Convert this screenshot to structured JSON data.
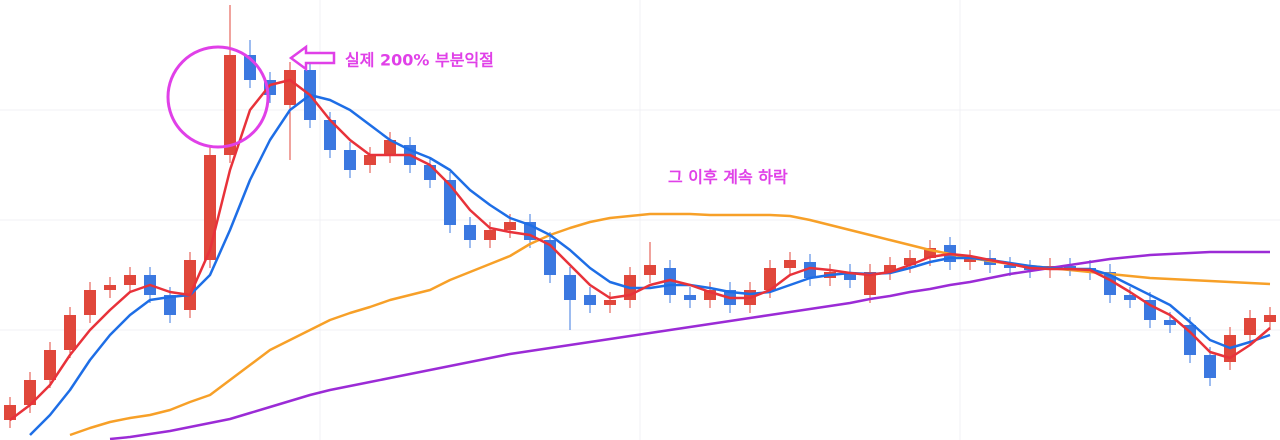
{
  "chart_data": {
    "type": "candlestick",
    "ylim": [
      0,
      440
    ],
    "up_color": "#e0473b",
    "down_color": "#3b78e0",
    "open": [
      20,
      35,
      60,
      90,
      125,
      150,
      155,
      165,
      145,
      130,
      180,
      285,
      385,
      360,
      335,
      370,
      320,
      290,
      275,
      285,
      295,
      275,
      260,
      215,
      200,
      210,
      218,
      200,
      165,
      145,
      135,
      140,
      165,
      172,
      145,
      140,
      150,
      135,
      150,
      172,
      178,
      162,
      168,
      145,
      168,
      175,
      182,
      195,
      178,
      182,
      175,
      172,
      170,
      174,
      172,
      168,
      145,
      140,
      120,
      115,
      85,
      78,
      105,
      118
    ],
    "high": [
      43,
      68,
      98,
      133,
      158,
      163,
      173,
      173,
      153,
      188,
      293,
      435,
      400,
      368,
      378,
      378,
      328,
      298,
      293,
      308,
      303,
      283,
      268,
      223,
      218,
      226,
      226,
      208,
      173,
      153,
      148,
      173,
      198,
      180,
      153,
      158,
      158,
      158,
      180,
      188,
      186,
      176,
      176,
      176,
      183,
      190,
      200,
      203,
      190,
      190,
      183,
      180,
      182,
      182,
      180,
      176,
      153,
      148,
      128,
      123,
      93,
      113,
      130,
      133
    ],
    "low": [
      12,
      27,
      52,
      82,
      117,
      142,
      147,
      137,
      117,
      122,
      172,
      277,
      352,
      337,
      280,
      312,
      282,
      262,
      267,
      277,
      267,
      252,
      207,
      192,
      192,
      202,
      192,
      157,
      110,
      127,
      127,
      132,
      157,
      137,
      132,
      132,
      127,
      127,
      142,
      164,
      154,
      154,
      152,
      137,
      160,
      167,
      174,
      170,
      170,
      167,
      164,
      162,
      162,
      164,
      160,
      137,
      132,
      112,
      107,
      77,
      54,
      70,
      97,
      110
    ],
    "close": [
      35,
      60,
      90,
      125,
      150,
      155,
      165,
      145,
      125,
      180,
      285,
      385,
      360,
      345,
      370,
      320,
      290,
      270,
      285,
      300,
      275,
      260,
      215,
      200,
      210,
      218,
      200,
      165,
      140,
      135,
      140,
      165,
      175,
      145,
      140,
      150,
      135,
      150,
      172,
      180,
      162,
      168,
      160,
      168,
      175,
      182,
      192,
      178,
      182,
      175,
      172,
      170,
      174,
      172,
      168,
      145,
      140,
      120,
      115,
      85,
      62,
      105,
      122,
      125
    ],
    "series": [
      {
        "color": "#f7a028",
        "values": [
          null,
          null,
          null,
          5,
          12,
          18,
          22,
          25,
          30,
          38,
          45,
          60,
          75,
          90,
          100,
          110,
          120,
          127,
          133,
          140,
          145,
          150,
          160,
          168,
          176,
          184,
          196,
          205,
          212,
          218,
          222,
          224,
          226,
          226,
          226,
          225,
          225,
          225,
          225,
          224,
          220,
          215,
          210,
          205,
          200,
          195,
          190,
          186,
          182,
          179,
          176,
          174,
          172,
          170,
          168,
          166,
          164,
          162,
          161,
          160,
          159,
          158,
          157,
          156
        ]
      },
      {
        "color": "#9b2bd6",
        "values": [
          null,
          null,
          null,
          null,
          null,
          1,
          3,
          6,
          9,
          13,
          17,
          21,
          27,
          33,
          39,
          45,
          50,
          54,
          58,
          62,
          66,
          70,
          74,
          78,
          82,
          86,
          89,
          92,
          95,
          98,
          101,
          104,
          107,
          110,
          113,
          116,
          119,
          122,
          125,
          128,
          131,
          134,
          137,
          141,
          144,
          148,
          151,
          155,
          158,
          162,
          166,
          169,
          172,
          175,
          178,
          181,
          183,
          185,
          186,
          187,
          188,
          188,
          188,
          188
        ]
      },
      {
        "color": "#1e6ee6",
        "values": [
          null,
          5,
          25,
          50,
          80,
          105,
          125,
          140,
          143,
          145,
          165,
          210,
          260,
          300,
          330,
          345,
          340,
          330,
          315,
          300,
          290,
          282,
          270,
          250,
          235,
          222,
          215,
          205,
          190,
          172,
          158,
          152,
          152,
          155,
          155,
          152,
          148,
          146,
          148,
          155,
          162,
          165,
          167,
          166,
          167,
          172,
          178,
          182,
          182,
          180,
          177,
          174,
          172,
          171,
          171,
          165,
          155,
          145,
          135,
          118,
          100,
          92,
          98,
          105
        ]
      },
      {
        "color": "#e8323a",
        "values": [
          20,
          35,
          55,
          85,
          110,
          130,
          148,
          155,
          148,
          145,
          190,
          270,
          330,
          355,
          360,
          345,
          320,
          300,
          285,
          285,
          285,
          275,
          255,
          230,
          212,
          208,
          205,
          195,
          175,
          155,
          142,
          145,
          155,
          160,
          155,
          148,
          142,
          142,
          150,
          165,
          172,
          170,
          167,
          165,
          168,
          175,
          183,
          186,
          184,
          180,
          176,
          172,
          171,
          171,
          170,
          160,
          148,
          135,
          125,
          108,
          88,
          82,
          95,
          112
        ]
      }
    ],
    "annotations": [
      "실제 200% 부분익절",
      "그 이후 계속 하락"
    ],
    "annotation_color": "#e040e8"
  }
}
